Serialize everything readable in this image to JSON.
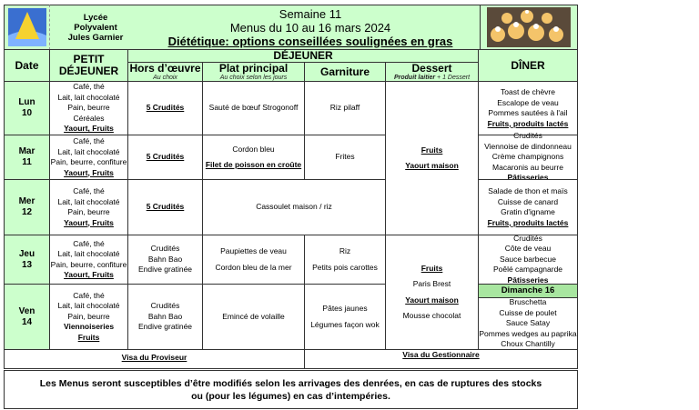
{
  "header": {
    "school": [
      "Lycée",
      "Polyvalent",
      "Jules Garnier"
    ],
    "week": "Semaine 11",
    "dates": "Menus du 10 au 16 mars 2024",
    "diet_note": "Diététique: options conseillées soulignées en gras"
  },
  "columns": {
    "date": "Date",
    "breakfast": "PETIT DÉJEUNER",
    "lunch": "DÉJEUNER",
    "starter": "Hors d’œuvre",
    "starter_sub": "Au choix",
    "main": "Plat principal",
    "main_sub": "Au choix selon les jours",
    "side": "Garniture",
    "dessert": "Dessert",
    "dessert_sub_bold": "Produit laitier",
    "dessert_sub_rest": " + 1 Dessert",
    "dinner": "DÎNER"
  },
  "days": [
    {
      "day": "Lun",
      "num": "10",
      "breakfast": [
        "Café, thé",
        "Lait, lait chocolaté",
        "Pain, beurre",
        "Céréales",
        "Yaourt, Fruits"
      ],
      "starter": "5 Crudités",
      "main": [
        "Sauté de bœuf Strogonoff"
      ],
      "side": [
        "Riz pilaff"
      ],
      "dinner": [
        "Toast de chèvre",
        "Escalope de veau",
        "Pommes sautées à l'ail",
        "Fruits, produits lactés"
      ]
    },
    {
      "day": "Mar",
      "num": "11",
      "breakfast": [
        "Café, thé",
        "Lait, lait chocolaté",
        "Pain, beurre, confiture",
        "Yaourt, Fruits"
      ],
      "starter": "5 Crudités",
      "main": [
        "Cordon bleu",
        "Filet de poisson en croûte"
      ],
      "side": [
        "Frites"
      ],
      "dinner": [
        "Crudités",
        "Viennoise de dindonneau",
        "Crème champignons",
        "Macaronis au beurre",
        "Pâtisseries"
      ]
    },
    {
      "day": "Mer",
      "num": "12",
      "breakfast": [
        "Café, thé",
        "Lait, lait chocolaté",
        "Pain, beurre",
        "Yaourt, Fruits"
      ],
      "starter": "5 Crudités",
      "main": [
        "Cassoulet maison / riz"
      ],
      "dinner": [
        "Salade de thon et maïs",
        "Cuisse de canard",
        "Gratin d'igname",
        "Fruits, produits lactés"
      ]
    },
    {
      "day": "Jeu",
      "num": "13",
      "breakfast": [
        "Café, thé",
        "Lait, lait chocolaté",
        "Pain, beurre, confiture",
        "Yaourt, Fruits"
      ],
      "starter": [
        "Crudités",
        "Bahn Bao",
        "Endive gratinée"
      ],
      "main": [
        "Paupiettes de veau",
        "Cordon bleu de la mer"
      ],
      "side": [
        "Riz",
        "Petits pois carottes"
      ],
      "dinner": [
        "Crudités",
        "Côte de veau",
        "Sauce barbecue",
        "Poêlé campagnarde",
        "Pâtisseries"
      ]
    },
    {
      "day": "Ven",
      "num": "14",
      "breakfast": [
        "Café, thé",
        "Lait, lait chocolaté",
        "Pain, beurre",
        "Viennoiseries",
        "Fruits"
      ],
      "starter": [
        "Crudités",
        "Bahn Bao",
        "Endive gratinée"
      ],
      "main": [
        "Emincé de volaille"
      ],
      "side": [
        "Pâtes jaunes",
        "Légumes façon wok"
      ]
    }
  ],
  "dessert_a": [
    "Fruits",
    "Yaourt maison"
  ],
  "dessert_b": [
    "Fruits",
    "Paris Brest",
    "Yaourt maison",
    "Mousse chocolat"
  ],
  "sunday": {
    "title": "Dimanche 16",
    "dinner": [
      "Bruschetta",
      "Cuisse de poulet",
      "Sauce Satay",
      "Pommes wedges au paprika",
      "Choux Chantilly"
    ]
  },
  "visa": {
    "principal": "Visa du Proviseur",
    "manager": "Visa du Gestionnaire"
  },
  "footer": [
    "Les Menus seront susceptibles d’être modifiés selon les arrivages des denrées, en cas de ruptures des stocks",
    "ou (pour les légumes) en cas d’intempéries."
  ]
}
